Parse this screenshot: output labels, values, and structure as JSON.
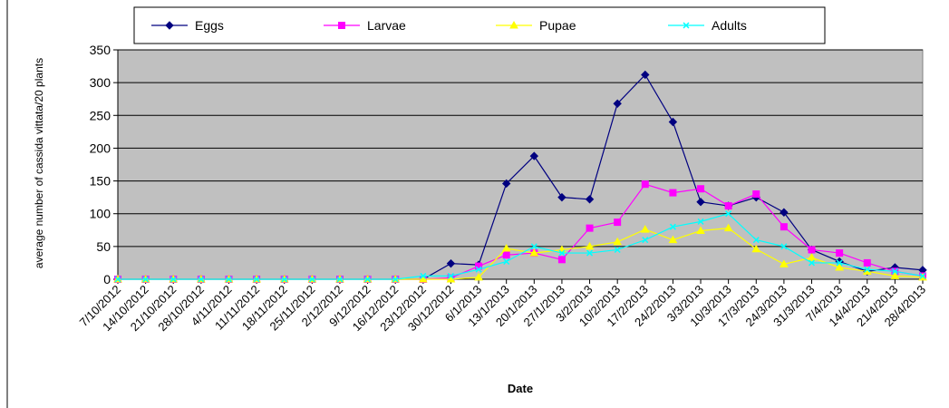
{
  "chart_data": {
    "type": "line",
    "y_label": "average number of cassida vittata/20 plants",
    "x_label": "Date",
    "categories": [
      "7/10/2012",
      "14/10/2012",
      "21/10/2012",
      "28/10/2012",
      "4/11/2012",
      "11/11/2012",
      "18/11/2012",
      "25/11/2012",
      "2/12/2012",
      "9/12/2012",
      "16/12/2012",
      "23/12/2012",
      "30/12/2012",
      "6/1/2013",
      "13/1/2013",
      "20/1/2013",
      "27/1/2013",
      "3/2/2013",
      "10/2/2013",
      "17/2/2013",
      "24/2/2013",
      "3/3/2013",
      "10/3/2013",
      "17/3/2013",
      "24/3/2013",
      "31/3/2013",
      "7/4/2013",
      "14/4/2013",
      "21/4/2013",
      "28/4/2013"
    ],
    "series": [
      {
        "name": "Eggs",
        "color": "#000080",
        "marker": "diamond",
        "values": [
          0,
          0,
          0,
          0,
          0,
          0,
          0,
          0,
          0,
          0,
          0,
          0,
          24,
          22,
          146,
          188,
          125,
          122,
          268,
          312,
          240,
          118,
          112,
          125,
          102,
          45,
          27,
          12,
          18,
          14
        ]
      },
      {
        "name": "Larvae",
        "color": "#ff00ff",
        "marker": "square",
        "values": [
          0,
          0,
          0,
          0,
          0,
          0,
          0,
          0,
          0,
          0,
          0,
          0,
          2,
          20,
          37,
          40,
          30,
          78,
          87,
          145,
          132,
          138,
          112,
          130,
          80,
          45,
          40,
          25,
          12,
          5
        ]
      },
      {
        "name": "Pupae",
        "color": "#ffff00",
        "marker": "triangle",
        "values": [
          0,
          0,
          0,
          0,
          0,
          0,
          0,
          0,
          0,
          0,
          0,
          0,
          0,
          3,
          47,
          40,
          45,
          50,
          57,
          76,
          60,
          74,
          78,
          46,
          23,
          33,
          18,
          12,
          5,
          3
        ]
      },
      {
        "name": "Adults",
        "color": "#00ffff",
        "marker": "x",
        "values": [
          0,
          0,
          0,
          0,
          0,
          0,
          0,
          0,
          0,
          0,
          0,
          5,
          5,
          15,
          27,
          50,
          40,
          40,
          45,
          60,
          80,
          88,
          100,
          60,
          50,
          25,
          25,
          15,
          12,
          5
        ]
      }
    ],
    "ylim": [
      0,
      350
    ],
    "yticks": [
      0,
      50,
      100,
      150,
      200,
      250,
      300,
      350
    ],
    "grid": true
  }
}
